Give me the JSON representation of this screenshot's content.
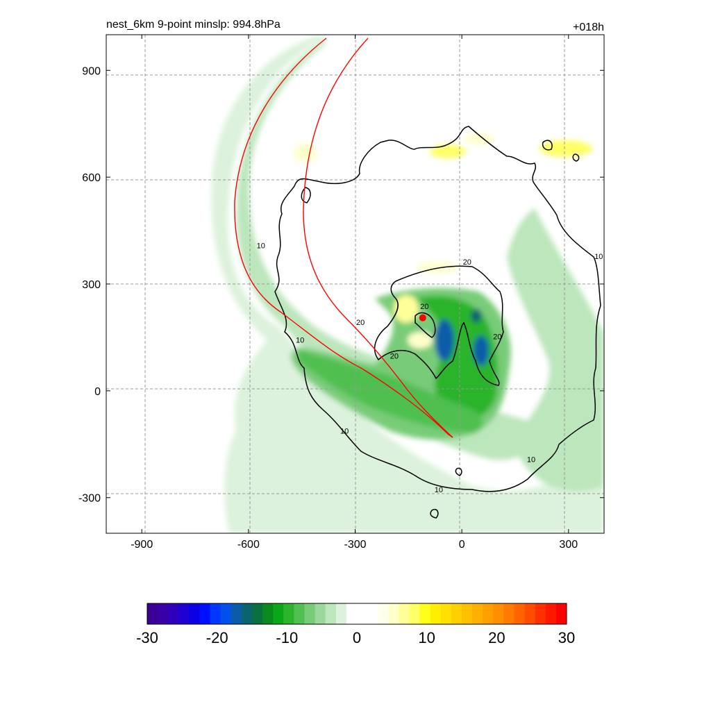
{
  "chart_data": {
    "type": "heatmap",
    "title": "nest_6km  9-point minslp: 994.8hPa",
    "time_label": "+018h",
    "xlim": [
      -1000,
      400
    ],
    "ylim": [
      -400,
      1000
    ],
    "x_ticks": [
      -900,
      -600,
      -300,
      0,
      300
    ],
    "y_ticks": [
      900,
      600,
      300,
      0,
      -300
    ],
    "grid": "dashed",
    "colorbar": {
      "range": [
        -30,
        30
      ],
      "tick_labels": [
        "-30",
        "-20",
        "-10",
        "0",
        "10",
        "20",
        "30"
      ],
      "colors": [
        "#3b0094",
        "#3a00a8",
        "#2e00bc",
        "#1e00d2",
        "#0c00e6",
        "#0010ff",
        "#0038ff",
        "#0050ec",
        "#0a5ca8",
        "#0a6470",
        "#0a7040",
        "#0a8a1e",
        "#0aa818",
        "#2cb42c",
        "#50c050",
        "#78cc78",
        "#9cd89c",
        "#bce6bc",
        "#dcf2dc",
        "#ffffff",
        "#ffffff",
        "#ffffff",
        "#ffffee",
        "#ffffcc",
        "#ffff9a",
        "#ffff66",
        "#ffff1a",
        "#ffee00",
        "#ffe000",
        "#ffd000",
        "#ffc000",
        "#ffb000",
        "#ffa000",
        "#ff8e00",
        "#ff7a00",
        "#ff6400",
        "#ff4c00",
        "#ff3000",
        "#ff1800",
        "#ff0000"
      ]
    },
    "contour_labels": [
      {
        "text": "10",
        "x": -565,
        "y": 400
      },
      {
        "text": "10",
        "x": -455,
        "y": 135
      },
      {
        "text": "10",
        "x": -330,
        "y": -120
      },
      {
        "text": "10",
        "x": -65,
        "y": -285
      },
      {
        "text": "10",
        "x": 195,
        "y": -200
      },
      {
        "text": "10",
        "x": 385,
        "y": 370
      },
      {
        "text": "20",
        "x": 15,
        "y": 355
      },
      {
        "text": "20",
        "x": -285,
        "y": 185
      },
      {
        "text": "20",
        "x": -190,
        "y": 90
      },
      {
        "text": "20",
        "x": -105,
        "y": 230
      },
      {
        "text": "20",
        "x": 100,
        "y": 145
      }
    ],
    "storm_center": {
      "x": -110,
      "y": 205
    }
  }
}
